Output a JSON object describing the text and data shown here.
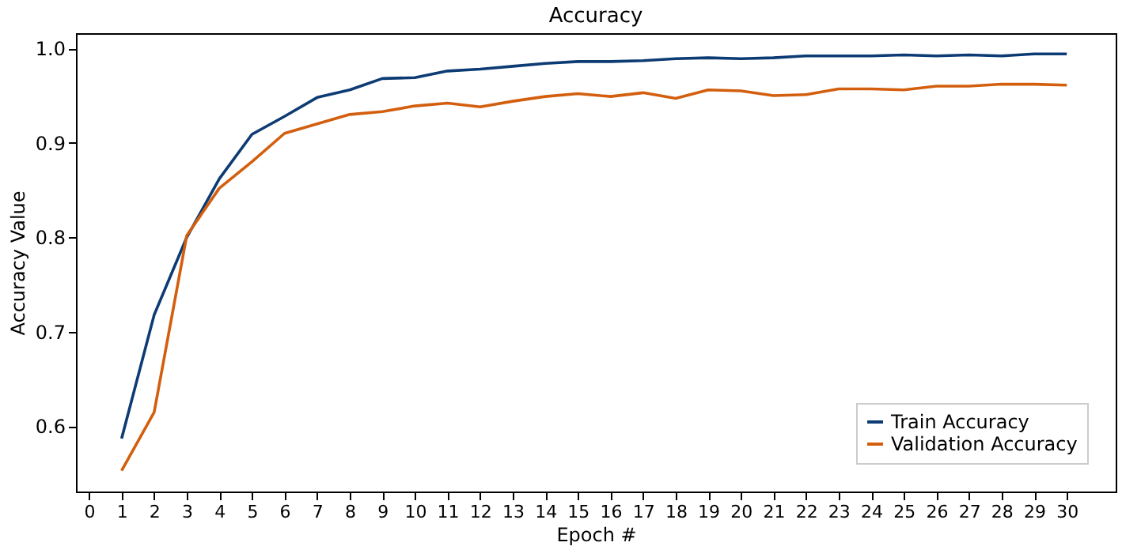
{
  "chart_data": {
    "type": "line",
    "title": "Accuracy",
    "xlabel": "Epoch #",
    "ylabel": "Accuracy Value",
    "x": [
      1,
      2,
      3,
      4,
      5,
      6,
      7,
      8,
      9,
      10,
      11,
      12,
      13,
      14,
      15,
      16,
      17,
      18,
      19,
      20,
      21,
      22,
      23,
      24,
      25,
      26,
      27,
      28,
      29,
      30
    ],
    "series": [
      {
        "name": "Train Accuracy",
        "color": "#0d3b73",
        "values": [
          0.587,
          0.718,
          0.8,
          0.862,
          0.909,
          0.928,
          0.948,
          0.956,
          0.968,
          0.969,
          0.976,
          0.978,
          0.981,
          0.984,
          0.986,
          0.986,
          0.987,
          0.989,
          0.99,
          0.989,
          0.99,
          0.992,
          0.992,
          0.992,
          0.993,
          0.992,
          0.993,
          0.992,
          0.994,
          0.994
        ]
      },
      {
        "name": "Validation Accuracy",
        "color": "#d35f0e",
        "values": [
          0.553,
          0.615,
          0.802,
          0.852,
          0.88,
          0.91,
          0.92,
          0.93,
          0.933,
          0.939,
          0.942,
          0.938,
          0.944,
          0.949,
          0.952,
          0.949,
          0.953,
          0.947,
          0.956,
          0.955,
          0.95,
          0.951,
          0.957,
          0.957,
          0.956,
          0.96,
          0.96,
          0.962,
          0.962,
          0.961
        ]
      }
    ],
    "xlim": [
      -0.4,
      31.5
    ],
    "xticks": [
      0,
      1,
      2,
      3,
      4,
      5,
      6,
      7,
      8,
      9,
      10,
      11,
      12,
      13,
      14,
      15,
      16,
      17,
      18,
      19,
      20,
      21,
      22,
      23,
      24,
      25,
      26,
      27,
      28,
      29,
      30
    ],
    "ylim": [
      0.531,
      1.016
    ],
    "yticks": [
      {
        "value": 0.6,
        "label": "0.6"
      },
      {
        "value": 0.7,
        "label": "0.7"
      },
      {
        "value": 0.8,
        "label": "0.8"
      },
      {
        "value": 0.9,
        "label": "0.9"
      },
      {
        "value": 1,
        "label": "1.0"
      }
    ],
    "grid": false,
    "legend": "bottom right",
    "line_style": "solid",
    "marker": "none"
  }
}
